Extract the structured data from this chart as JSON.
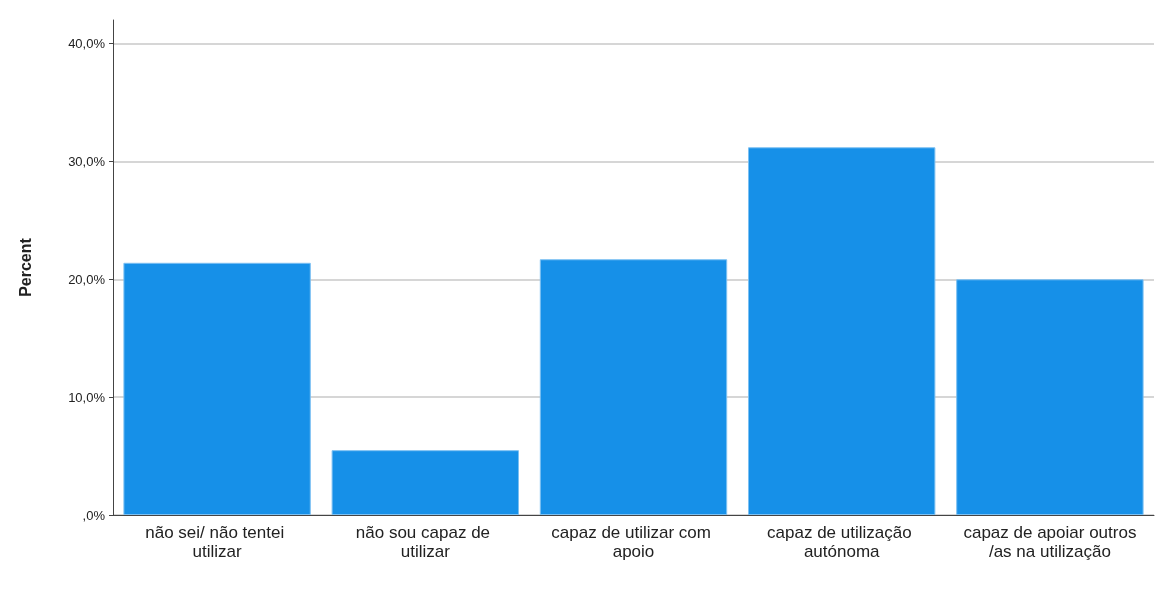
{
  "chart_data": {
    "type": "bar",
    "ylabel": "Percent",
    "categories": [
      "não sei/ não tentei utilizar",
      "não sou capaz de utilizar",
      "capaz de utilizar com apoio",
      "capaz de utilização autónoma",
      "capaz de apoiar outros/as na utilização"
    ],
    "values": [
      21.4,
      5.5,
      21.7,
      31.2,
      20.0
    ],
    "color": "#1690e8",
    "ylim": [
      0,
      42
    ],
    "yticks": [
      {
        "value": 0,
        "label": ",0%"
      },
      {
        "value": 10,
        "label": "10,0%"
      },
      {
        "value": 20,
        "label": "20,0%"
      },
      {
        "value": 30,
        "label": "30,0%"
      },
      {
        "value": 40,
        "label": "40,0%"
      }
    ],
    "grid": "y"
  }
}
